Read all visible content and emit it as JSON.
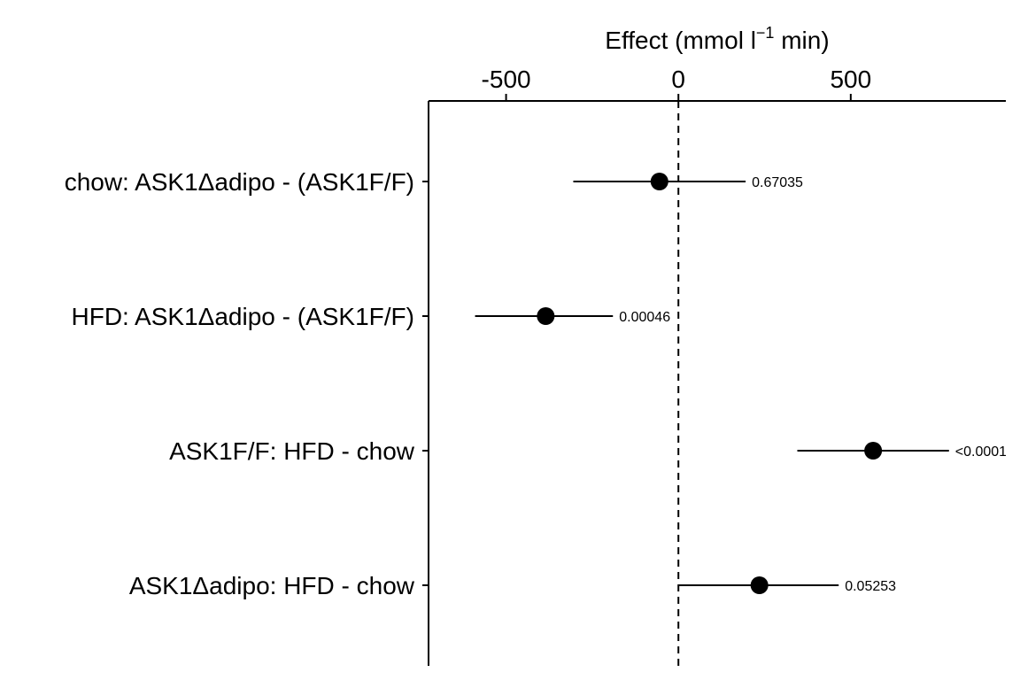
{
  "chart_data": {
    "type": "forest",
    "xlabel_main": "Effect (mmol l",
    "xlabel_sup": "−1",
    "xlabel_tail": " min)",
    "x_ticks": [
      -500,
      0,
      500
    ],
    "x_tick_labels": [
      "-500",
      "0",
      "500"
    ],
    "xlim": [
      -725,
      950
    ],
    "reference_line": 0,
    "rows": [
      {
        "label": "chow: ASK1Δadipo - (ASK1F/F)",
        "estimate": -55,
        "ci_low": -305,
        "ci_high": 195,
        "p_label": "0.67035"
      },
      {
        "label": "HFD: ASK1Δadipo - (ASK1F/F)",
        "estimate": -385,
        "ci_low": -590,
        "ci_high": -190,
        "p_label": "0.00046"
      },
      {
        "label": "ASK1F/F: HFD - chow",
        "estimate": 565,
        "ci_low": 345,
        "ci_high": 785,
        "p_label": "<0.0001"
      },
      {
        "label": "ASK1Δadipo: HFD - chow",
        "estimate": 235,
        "ci_low": 0,
        "ci_high": 465,
        "p_label": "0.05253"
      }
    ]
  }
}
